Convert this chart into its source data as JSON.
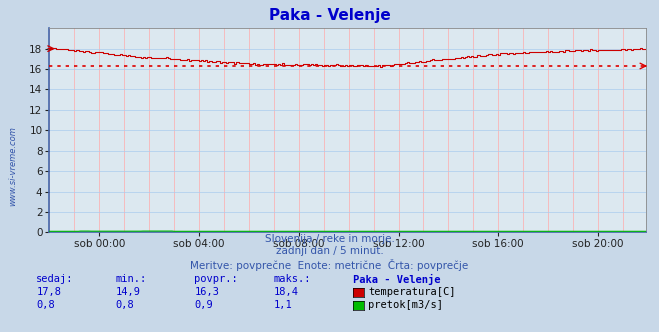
{
  "title": "Paka - Velenje",
  "title_color": "#0000cc",
  "bg_color": "#c8d8e8",
  "plot_bg_color": "#dce8f0",
  "grid_color_v": "#ffaaaa",
  "grid_color_h": "#aaccff",
  "xlabel_ticks": [
    "sob 00:00",
    "sob 04:00",
    "sob 08:00",
    "sob 12:00",
    "sob 16:00",
    "sob 20:00"
  ],
  "ylabel_ticks": [
    0,
    2,
    4,
    6,
    8,
    10,
    12,
    14,
    16,
    18
  ],
  "ylim": [
    0,
    20
  ],
  "xlim": [
    0,
    287
  ],
  "avg_line_value": 16.3,
  "avg_line_color": "#dd0000",
  "temp_line_color": "#cc0000",
  "flow_line_color": "#00bb00",
  "height_line_color": "#0000cc",
  "watermark_text": "www.si-vreme.com",
  "watermark_color": "#3355aa",
  "subtitle1": "Slovenija / reke in morje.",
  "subtitle2": "zadnji dan / 5 minut.",
  "subtitle3": "Meritve: povprečne  Enote: metrične  Črta: povprečje",
  "subtitle_color": "#3355aa",
  "table_color": "#0000cc",
  "table_header": [
    "sedaj:",
    "min.:",
    "povpr.:",
    "maks.:",
    "Paka - Velenje"
  ],
  "table_row1_vals": [
    "17,8",
    "14,9",
    "16,3",
    "18,4"
  ],
  "table_row1_label": "temperatura[C]",
  "table_row2_vals": [
    "0,8",
    "0,8",
    "0,9",
    "1,1"
  ],
  "table_row2_label": "pretok[m3/s]",
  "legend_color1": "#cc0000",
  "legend_color2": "#00bb00"
}
